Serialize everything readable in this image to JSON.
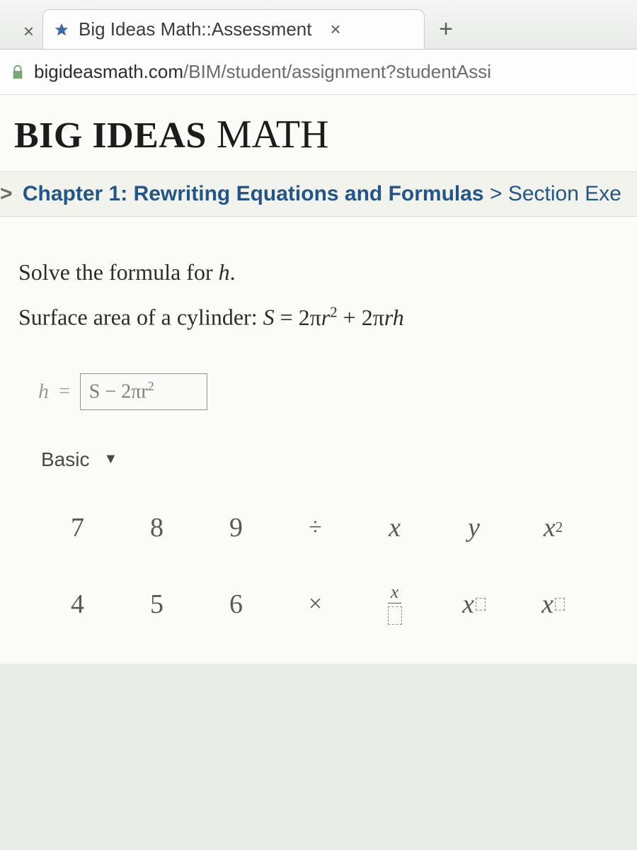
{
  "browser": {
    "prev_tab_close_glyph": "×",
    "tab": {
      "title": "Big Ideas Math::Assessment",
      "close_glyph": "×"
    },
    "new_tab_glyph": "+",
    "url": {
      "domain": "bigideasmath.com",
      "path": "/BIM/student/assignment?studentAssi"
    }
  },
  "brand": {
    "left": "BIG IDEAS",
    "right": "MATH"
  },
  "breadcrumb": {
    "chevron": ">",
    "seg1": "Chapter 1: Rewriting Equations and Formulas",
    "sep": " > ",
    "seg2": "Section Exe"
  },
  "question": {
    "line1_pre": "Solve the formula for ",
    "line1_var": "h",
    "line1_post": ".",
    "line2_pre": "Surface area of a cylinder: ",
    "formula_S": "S",
    "formula_eq": " = ",
    "formula_rhs_html": "2πr² + 2πrh"
  },
  "answer": {
    "label": "h",
    "equals": "=",
    "input_value_html": "S − 2πr²"
  },
  "keypad": {
    "mode_label": "Basic",
    "rows": [
      [
        {
          "type": "num",
          "label": "7"
        },
        {
          "type": "num",
          "label": "8"
        },
        {
          "type": "num",
          "label": "9"
        },
        {
          "type": "op",
          "label": "÷"
        },
        {
          "type": "var",
          "label": "x"
        },
        {
          "type": "var",
          "label": "y"
        },
        {
          "type": "exp2",
          "base": "x"
        }
      ],
      [
        {
          "type": "num",
          "label": "4"
        },
        {
          "type": "num",
          "label": "5"
        },
        {
          "type": "num",
          "label": "6"
        },
        {
          "type": "op",
          "label": "×"
        },
        {
          "type": "frac",
          "top": "x",
          "bot": "□"
        },
        {
          "type": "expbox",
          "base": "x"
        },
        {
          "type": "subbox",
          "base": "x"
        }
      ]
    ]
  },
  "colors": {
    "link": "#245589",
    "text": "#2c2e2c",
    "muted": "#9a9d96",
    "key_text": "#565a55"
  }
}
